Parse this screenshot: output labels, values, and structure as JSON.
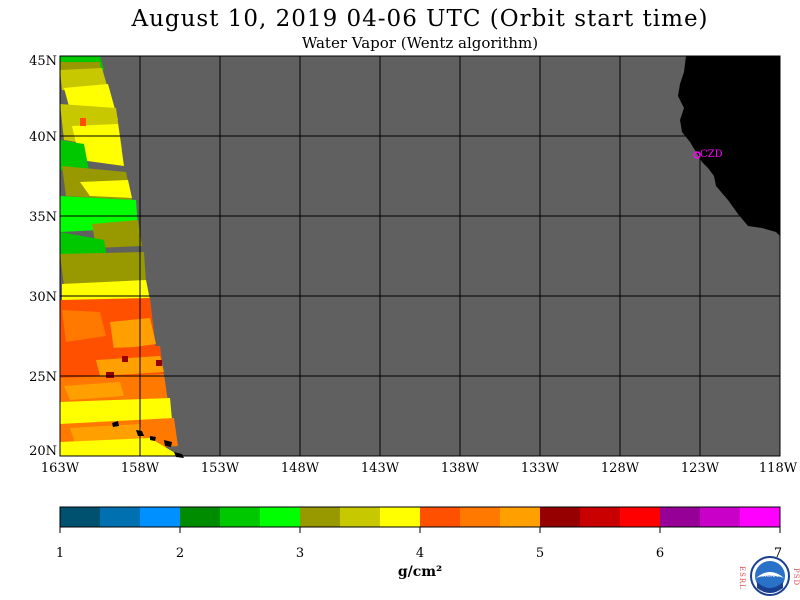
{
  "title": "August 10, 2019  04-06 UTC  (Orbit start time)",
  "subtitle": "Water Vapor (Wentz algorithm)",
  "map": {
    "lat_labels": [
      "45N",
      "40N",
      "35N",
      "30N",
      "25N",
      "20N"
    ],
    "lon_labels": [
      "163W",
      "158W",
      "153W",
      "148W",
      "143W",
      "138W",
      "133W",
      "128W",
      "123W",
      "118W"
    ],
    "station_label": "CZD",
    "colors": {
      "no_data": "#606060",
      "land": "#000000",
      "grid": "#000000",
      "station": "#ff00ff"
    }
  },
  "colorbar": {
    "tick_labels": [
      "1",
      "2",
      "3",
      "4",
      "5",
      "6",
      "7"
    ],
    "unit": "g/cm²",
    "colors": [
      "#005070",
      "#0070b0",
      "#0090ff",
      "#008c00",
      "#00c800",
      "#00ff00",
      "#989800",
      "#c8c800",
      "#ffff00",
      "#ff5000",
      "#ff7800",
      "#ffa000",
      "#960000",
      "#c80000",
      "#ff0000",
      "#960096",
      "#c800c8",
      "#ff00ff"
    ]
  },
  "logo": {
    "left_text": "ESRL",
    "right_text": "PSD",
    "center_text": "NOAA"
  }
}
